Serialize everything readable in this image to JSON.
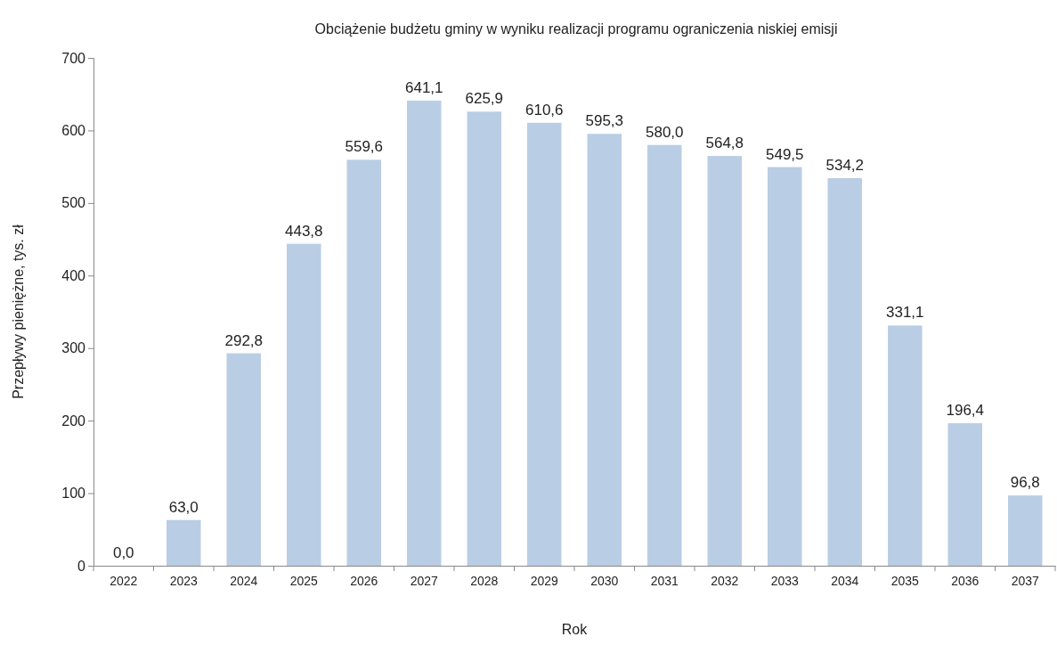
{
  "chart_data": {
    "type": "bar",
    "title": "Obciążenie budżetu gminy w wyniku realizacji programu ograniczenia niskiej emisji",
    "xlabel": "Rok",
    "ylabel": "Przepływy pieniężne, tys. zł",
    "categories": [
      "2022",
      "2023",
      "2024",
      "2025",
      "2026",
      "2027",
      "2028",
      "2029",
      "2030",
      "2031",
      "2032",
      "2033",
      "2034",
      "2035",
      "2036",
      "2037"
    ],
    "values": [
      0.0,
      63.0,
      292.8,
      443.8,
      559.6,
      641.1,
      625.9,
      610.6,
      595.3,
      580.0,
      564.8,
      549.5,
      534.2,
      331.1,
      196.4,
      96.8
    ],
    "value_labels": [
      "0,0",
      "63,0",
      "292,8",
      "443,8",
      "559,6",
      "641,1",
      "625,9",
      "610,6",
      "595,3",
      "580,0",
      "564,8",
      "549,5",
      "534,2",
      "331,1",
      "196,4",
      "96,8"
    ],
    "color": "#b9cde5",
    "ylim": [
      0,
      700
    ],
    "yticks": [
      0,
      100,
      200,
      300,
      400,
      500,
      600,
      700
    ],
    "grid": false,
    "legend": false
  }
}
